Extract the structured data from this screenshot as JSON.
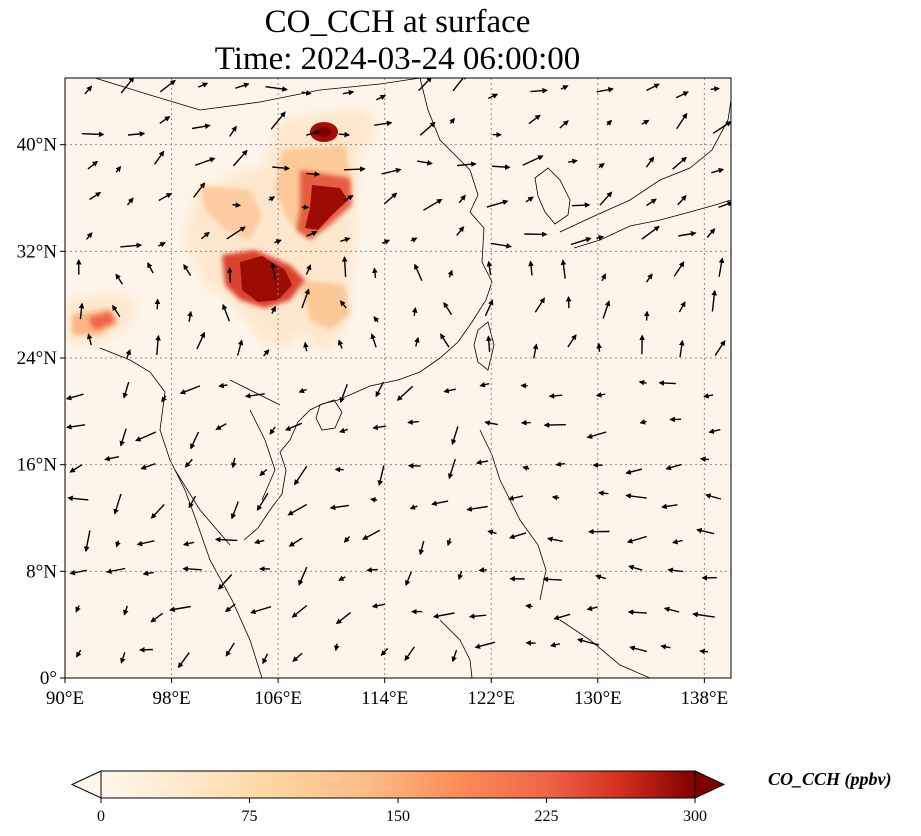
{
  "title": {
    "line1": "CO_CCH at surface",
    "line2": "Time: 2024-03-24 06:00:00"
  },
  "map": {
    "lon_range": [
      90,
      140
    ],
    "lat_range": [
      0,
      45
    ],
    "lon_ticks": [
      "90°E",
      "98°E",
      "106°E",
      "114°E",
      "122°E",
      "130°E",
      "138°E"
    ],
    "lat_ticks": [
      "0°",
      "8°N",
      "16°N",
      "24°N",
      "32°N",
      "40°N"
    ],
    "gridlines": true,
    "background_color": "#fef5ea",
    "coastline_color": "#000000",
    "vector_color": "#000000"
  },
  "colorbar": {
    "label": "CO_CCH (ppbv)",
    "ticks": [
      "0",
      "75",
      "150",
      "225",
      "300"
    ],
    "min": 0,
    "max": 300,
    "colormap": "OrRd",
    "extend": "both"
  }
}
